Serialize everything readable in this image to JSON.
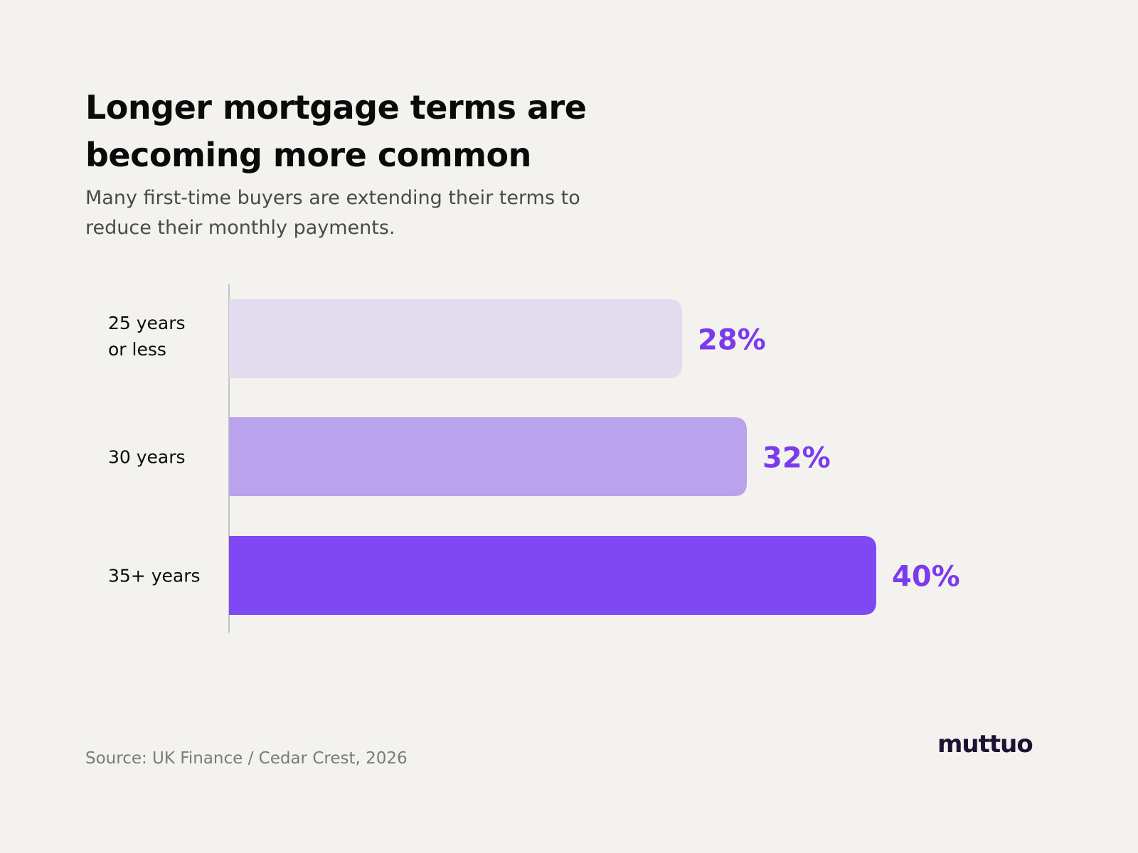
{
  "title": "Longer mortgage terms are becoming more common",
  "subtitle": "Many first-time buyers are extending their terms to reduce their monthly payments.",
  "source": "Source: UK Finance / Cedar Crest, 2026",
  "logo": "muttuo",
  "colors": {
    "background": "#f3f2ee",
    "text": "#0a0a0a",
    "value_label": "#7c3aed",
    "logo": "#1e1233"
  },
  "chart_data": {
    "type": "bar",
    "orientation": "horizontal",
    "categories": [
      "25 years or less",
      "30 years",
      "35+ years"
    ],
    "category_lines": [
      [
        "25 years",
        "or less"
      ],
      [
        "30 years"
      ],
      [
        "35+ years"
      ]
    ],
    "values": [
      28,
      32,
      40
    ],
    "value_labels": [
      "28%",
      "32%",
      "40%"
    ],
    "bar_colors": [
      "#e2dcef",
      "#b8a3ec",
      "#7e49f2"
    ],
    "xlim": [
      0,
      40
    ],
    "grid": false,
    "legend": "none"
  }
}
